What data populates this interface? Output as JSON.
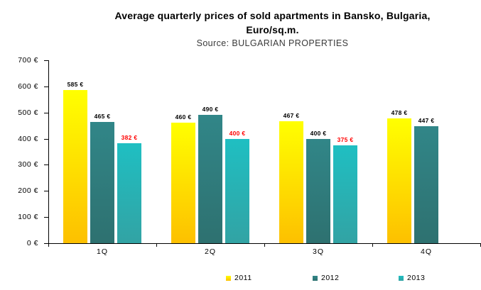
{
  "title": {
    "line1": "Average quarterly prices of sold apartments in Bansko, Bulgaria,",
    "line2": "Euro/sq.m.",
    "subtitle": "Source: BULGARIAN PROPERTIES"
  },
  "chart_data": {
    "type": "bar",
    "title": "Average quarterly prices of sold apartments in Bansko, Bulgaria, Euro/sq.m.",
    "subtitle": "Source: BULGARIAN PROPERTIES",
    "categories": [
      "1Q",
      "2Q",
      "3Q",
      "4Q"
    ],
    "series": [
      {
        "name": "2011",
        "values": [
          585,
          460,
          467,
          478
        ],
        "labels": [
          "585 €",
          "460 €",
          "467 €",
          "478 €"
        ],
        "label_color": "#000000",
        "fill_top": "#FFFF00",
        "fill_bottom": "#FDC000",
        "legend_color": "#FFE000"
      },
      {
        "name": "2012",
        "values": [
          465,
          490,
          400,
          447
        ],
        "labels": [
          "465 €",
          "490 €",
          "400 €",
          "447 €"
        ],
        "label_color": "#000000",
        "fill_top": "#318688",
        "fill_bottom": "#2E7170",
        "legend_color": "#2E7D7E"
      },
      {
        "name": "2013",
        "values": [
          382,
          400,
          375,
          null
        ],
        "labels": [
          "382 €",
          "400 €",
          "375 €",
          null
        ],
        "label_color": "#FF0000",
        "fill_top": "#1FBFC2",
        "fill_bottom": "#32A3A4",
        "legend_color": "#27ADAD"
      }
    ],
    "y_ticks": [
      "0 €",
      "100 €",
      "200 €",
      "300 €",
      "400 €",
      "500 €",
      "600 €",
      "700 €"
    ],
    "ylim": [
      0,
      700
    ],
    "y_step": 100,
    "grid": false,
    "legend_position": "bottom",
    "axis_color": "#000000"
  }
}
